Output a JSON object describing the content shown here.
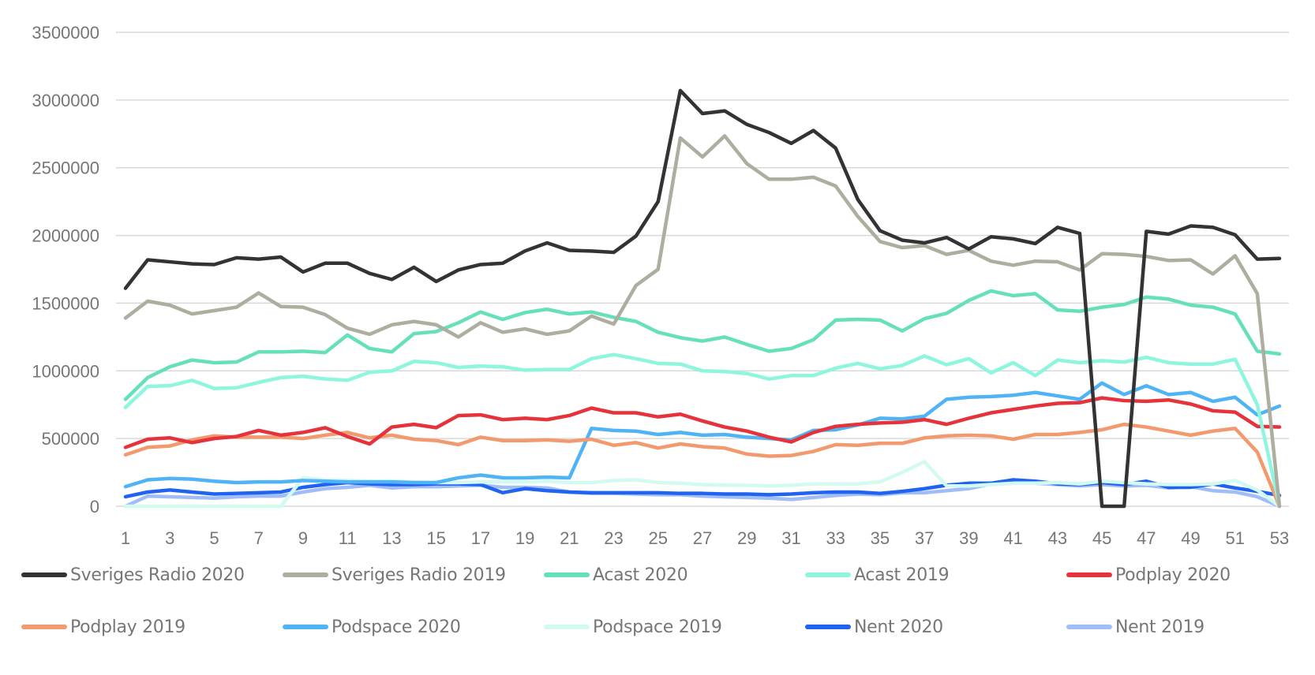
{
  "chart_data": {
    "type": "line",
    "title": "",
    "xlabel": "",
    "ylabel": "",
    "ylim": [
      0,
      3500000
    ],
    "xlim": [
      1,
      53
    ],
    "grid": true,
    "legend_position": "bottom",
    "y_ticks": [
      "0",
      "500000",
      "1000000",
      "1500000",
      "2000000",
      "2500000",
      "3000000",
      "3500000"
    ],
    "x_ticks": [
      "1",
      "3",
      "5",
      "7",
      "9",
      "11",
      "13",
      "15",
      "17",
      "19",
      "21",
      "23",
      "25",
      "27",
      "29",
      "31",
      "33",
      "35",
      "37",
      "39",
      "41",
      "43",
      "45",
      "47",
      "49",
      "51",
      "53"
    ],
    "x": [
      1,
      2,
      3,
      4,
      5,
      6,
      7,
      8,
      9,
      10,
      11,
      12,
      13,
      14,
      15,
      16,
      17,
      18,
      19,
      20,
      21,
      22,
      23,
      24,
      25,
      26,
      27,
      28,
      29,
      30,
      31,
      32,
      33,
      34,
      35,
      36,
      37,
      38,
      39,
      40,
      41,
      42,
      43,
      44,
      45,
      46,
      47,
      48,
      49,
      50,
      51,
      52,
      53
    ],
    "series": [
      {
        "name": "Sveriges Radio 2020",
        "color": "#333333",
        "values": [
          1610000,
          1820000,
          1805000,
          1790000,
          1785000,
          1835000,
          1825000,
          1840000,
          1730000,
          1795000,
          1795000,
          1720000,
          1675000,
          1765000,
          1660000,
          1745000,
          1785000,
          1795000,
          1885000,
          1945000,
          1890000,
          1885000,
          1875000,
          1995000,
          2250000,
          3070000,
          2900000,
          2920000,
          2820000,
          2760000,
          2680000,
          2775000,
          2645000,
          2265000,
          2035000,
          1965000,
          1945000,
          1985000,
          1900000,
          1990000,
          1975000,
          1940000,
          2060000,
          2015000,
          0,
          0,
          2030000,
          2010000,
          2070000,
          2060000,
          2005000,
          1825000,
          1830000
        ]
      },
      {
        "name": "Sveriges Radio 2019",
        "color": "#adada0",
        "values": [
          1390000,
          1515000,
          1485000,
          1420000,
          1445000,
          1470000,
          1575000,
          1475000,
          1470000,
          1415000,
          1315000,
          1270000,
          1340000,
          1365000,
          1340000,
          1250000,
          1355000,
          1285000,
          1310000,
          1270000,
          1295000,
          1405000,
          1345000,
          1630000,
          1750000,
          2720000,
          2580000,
          2735000,
          2530000,
          2415000,
          2415000,
          2430000,
          2365000,
          2140000,
          1955000,
          1910000,
          1925000,
          1860000,
          1890000,
          1810000,
          1780000,
          1810000,
          1805000,
          1745000,
          1865000,
          1860000,
          1845000,
          1815000,
          1820000,
          1715000,
          1850000,
          1570000,
          0
        ]
      },
      {
        "name": "Acast 2020",
        "color": "#66dfbb",
        "values": [
          790000,
          950000,
          1030000,
          1080000,
          1060000,
          1065000,
          1140000,
          1140000,
          1145000,
          1135000,
          1265000,
          1165000,
          1140000,
          1275000,
          1290000,
          1355000,
          1435000,
          1380000,
          1430000,
          1455000,
          1420000,
          1435000,
          1395000,
          1365000,
          1285000,
          1245000,
          1220000,
          1250000,
          1195000,
          1145000,
          1165000,
          1230000,
          1375000,
          1380000,
          1375000,
          1295000,
          1385000,
          1425000,
          1520000,
          1590000,
          1555000,
          1570000,
          1450000,
          1440000,
          1470000,
          1490000,
          1545000,
          1530000,
          1485000,
          1470000,
          1420000,
          1145000,
          1125000
        ]
      },
      {
        "name": "Acast 2019",
        "color": "#8ef5de",
        "values": [
          730000,
          885000,
          890000,
          930000,
          870000,
          875000,
          915000,
          950000,
          960000,
          940000,
          930000,
          990000,
          1000000,
          1070000,
          1060000,
          1025000,
          1035000,
          1030000,
          1005000,
          1010000,
          1010000,
          1090000,
          1120000,
          1090000,
          1055000,
          1050000,
          1000000,
          995000,
          980000,
          940000,
          965000,
          965000,
          1020000,
          1055000,
          1015000,
          1040000,
          1110000,
          1045000,
          1090000,
          985000,
          1060000,
          965000,
          1080000,
          1060000,
          1075000,
          1065000,
          1100000,
          1060000,
          1050000,
          1050000,
          1085000,
          750000,
          0
        ]
      },
      {
        "name": "Podplay 2020",
        "color": "#e5323b",
        "values": [
          435000,
          495000,
          505000,
          470000,
          500000,
          515000,
          560000,
          525000,
          545000,
          580000,
          515000,
          460000,
          585000,
          605000,
          580000,
          670000,
          675000,
          640000,
          650000,
          640000,
          670000,
          725000,
          690000,
          690000,
          660000,
          680000,
          630000,
          585000,
          555000,
          510000,
          475000,
          545000,
          590000,
          605000,
          615000,
          620000,
          640000,
          605000,
          650000,
          690000,
          715000,
          740000,
          760000,
          765000,
          800000,
          780000,
          775000,
          785000,
          755000,
          705000,
          695000,
          590000,
          585000
        ]
      },
      {
        "name": "Podplay 2019",
        "color": "#f29a6e",
        "values": [
          380000,
          435000,
          445000,
          490000,
          520000,
          510000,
          510000,
          510000,
          500000,
          525000,
          545000,
          505000,
          525000,
          495000,
          485000,
          455000,
          510000,
          485000,
          485000,
          490000,
          480000,
          495000,
          450000,
          470000,
          430000,
          460000,
          440000,
          430000,
          385000,
          370000,
          375000,
          405000,
          455000,
          450000,
          465000,
          465000,
          505000,
          520000,
          525000,
          520000,
          495000,
          530000,
          530000,
          545000,
          565000,
          605000,
          585000,
          555000,
          525000,
          555000,
          575000,
          400000,
          0
        ]
      },
      {
        "name": "Podspace 2020",
        "color": "#4fb3f6",
        "values": [
          145000,
          195000,
          205000,
          200000,
          185000,
          175000,
          180000,
          180000,
          190000,
          185000,
          180000,
          180000,
          180000,
          175000,
          175000,
          210000,
          230000,
          210000,
          210000,
          215000,
          210000,
          575000,
          560000,
          555000,
          530000,
          545000,
          525000,
          530000,
          510000,
          500000,
          490000,
          560000,
          565000,
          600000,
          650000,
          645000,
          665000,
          790000,
          805000,
          810000,
          820000,
          840000,
          815000,
          790000,
          910000,
          825000,
          890000,
          825000,
          840000,
          775000,
          805000,
          675000,
          740000
        ]
      },
      {
        "name": "Podspace 2019",
        "color": "#d3faf0",
        "values": [
          0,
          0,
          0,
          0,
          0,
          0,
          0,
          0,
          210000,
          195000,
          190000,
          185000,
          185000,
          180000,
          175000,
          175000,
          180000,
          180000,
          180000,
          185000,
          175000,
          175000,
          190000,
          195000,
          175000,
          170000,
          160000,
          155000,
          155000,
          150000,
          155000,
          165000,
          165000,
          165000,
          180000,
          250000,
          330000,
          150000,
          150000,
          160000,
          170000,
          170000,
          175000,
          165000,
          185000,
          175000,
          165000,
          160000,
          160000,
          165000,
          190000,
          120000,
          0
        ]
      },
      {
        "name": "Nent 2020",
        "color": "#1f63f0",
        "values": [
          70000,
          105000,
          120000,
          105000,
          90000,
          95000,
          100000,
          105000,
          140000,
          160000,
          175000,
          165000,
          160000,
          160000,
          165000,
          165000,
          160000,
          100000,
          130000,
          115000,
          105000,
          100000,
          100000,
          100000,
          100000,
          95000,
          95000,
          90000,
          90000,
          85000,
          90000,
          100000,
          105000,
          105000,
          95000,
          110000,
          130000,
          155000,
          170000,
          170000,
          195000,
          185000,
          165000,
          160000,
          175000,
          160000,
          185000,
          140000,
          140000,
          165000,
          135000,
          110000,
          80000
        ]
      },
      {
        "name": "Nent 2019",
        "color": "#a0bdf8",
        "values": [
          0,
          75000,
          70000,
          65000,
          60000,
          70000,
          75000,
          75000,
          105000,
          130000,
          140000,
          155000,
          135000,
          145000,
          145000,
          150000,
          155000,
          140000,
          140000,
          135000,
          105000,
          95000,
          95000,
          90000,
          85000,
          85000,
          75000,
          70000,
          65000,
          60000,
          50000,
          65000,
          80000,
          90000,
          85000,
          100000,
          100000,
          115000,
          130000,
          165000,
          170000,
          170000,
          160000,
          150000,
          160000,
          150000,
          155000,
          135000,
          145000,
          115000,
          105000,
          70000,
          0
        ]
      }
    ]
  }
}
